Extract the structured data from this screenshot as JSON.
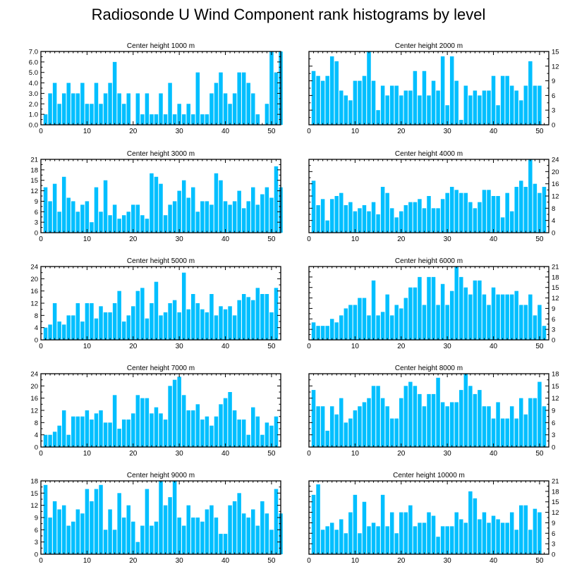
{
  "title": "Radiosonde U Wind Component rank histograms by level",
  "colors": {
    "bar": "#00bfff",
    "axis": "#000000",
    "background": "#ffffff"
  },
  "chart_data": [
    {
      "type": "bar",
      "title": "Center height 1000 m",
      "xlim": [
        0,
        52
      ],
      "ylim": [
        0,
        7
      ],
      "xticks": [
        0,
        10,
        20,
        30,
        40,
        50
      ],
      "yticks": [
        "0.0",
        "1.0",
        "2.0",
        "3.0",
        "4.0",
        "5.0",
        "6.0",
        "7.0"
      ],
      "ystep": 1,
      "ytick_side": "left",
      "values": [
        1,
        3,
        4,
        2,
        3,
        4,
        3,
        3,
        4,
        2,
        2,
        4,
        2,
        3,
        4,
        6,
        3,
        2,
        3,
        0,
        3,
        1,
        3,
        1,
        1,
        3,
        1,
        4,
        1,
        2,
        1,
        2,
        1,
        5,
        1,
        1,
        3,
        4,
        5,
        3,
        2,
        3,
        5,
        5,
        4,
        3,
        1,
        0,
        2,
        7,
        5,
        7
      ]
    },
    {
      "type": "bar",
      "title": "Center height 2000 m",
      "xlim": [
        0,
        52
      ],
      "ylim": [
        0,
        15
      ],
      "xticks": [
        0,
        10,
        20,
        30,
        40,
        50
      ],
      "yticks": [
        "0",
        "3",
        "6",
        "9",
        "12",
        "15"
      ],
      "ystep": 3,
      "ytick_side": "right",
      "values": [
        11,
        10,
        9,
        10,
        14,
        13,
        7,
        6,
        5,
        9,
        9,
        10,
        15,
        9,
        3,
        8,
        6,
        8,
        8,
        6,
        7,
        7,
        11,
        6,
        11,
        6,
        9,
        7,
        14,
        4,
        14,
        9,
        1,
        8,
        6,
        7,
        6,
        7,
        7,
        10,
        4,
        10,
        10,
        8,
        7,
        5,
        8,
        13,
        8,
        8
      ]
    },
    {
      "type": "bar",
      "title": "Center height 3000 m",
      "xlim": [
        0,
        52
      ],
      "ylim": [
        0,
        21
      ],
      "xticks": [
        0,
        10,
        20,
        30,
        40,
        50
      ],
      "yticks": [
        "0",
        "3",
        "6",
        "9",
        "12",
        "15",
        "18",
        "21"
      ],
      "ystep": 3,
      "ytick_side": "left",
      "values": [
        13,
        9,
        14,
        6,
        16,
        10,
        9,
        6,
        8,
        9,
        3,
        13,
        6,
        15,
        5,
        8,
        4,
        5,
        6,
        8,
        8,
        5,
        4,
        17,
        16,
        14,
        5,
        8,
        9,
        12,
        15,
        10,
        13,
        6,
        9,
        9,
        8,
        17,
        15,
        9,
        8,
        9,
        12,
        7,
        9,
        13,
        8,
        11,
        13,
        10,
        19,
        13
      ]
    },
    {
      "type": "bar",
      "title": "Center height 4000 m",
      "xlim": [
        0,
        52
      ],
      "ylim": [
        0,
        24
      ],
      "xticks": [
        0,
        10,
        20,
        30,
        40,
        50
      ],
      "yticks": [
        "0",
        "4",
        "8",
        "12",
        "16",
        "20",
        "24"
      ],
      "ystep": 4,
      "ytick_side": "right",
      "values": [
        17,
        9,
        11,
        4,
        11,
        12,
        13,
        9,
        10,
        7,
        8,
        9,
        7,
        10,
        6,
        15,
        13,
        8,
        5,
        7,
        9,
        10,
        10,
        11,
        8,
        12,
        8,
        8,
        11,
        13,
        15,
        14,
        13,
        13,
        10,
        8,
        10,
        14,
        14,
        12,
        12,
        5,
        13,
        7,
        15,
        17,
        15,
        24,
        16,
        13,
        15
      ]
    },
    {
      "type": "bar",
      "title": "Center height 5000 m",
      "xlim": [
        0,
        52
      ],
      "ylim": [
        0,
        24
      ],
      "xticks": [
        0,
        10,
        20,
        30,
        40,
        50
      ],
      "yticks": [
        "0",
        "4",
        "8",
        "12",
        "16",
        "20",
        "24"
      ],
      "ystep": 4,
      "ytick_side": "left",
      "values": [
        4,
        5,
        12,
        6,
        5,
        8,
        8,
        12,
        6,
        12,
        12,
        7,
        11,
        9,
        9,
        12,
        16,
        6,
        8,
        11,
        16,
        17,
        7,
        12,
        19,
        8,
        9,
        12,
        13,
        9,
        22,
        10,
        15,
        12,
        10,
        9,
        15,
        8,
        11,
        10,
        11,
        8,
        13,
        15,
        14,
        13,
        17,
        15,
        15,
        9,
        17
      ]
    },
    {
      "type": "bar",
      "title": "Center height 6000 m",
      "xlim": [
        0,
        52
      ],
      "ylim": [
        0,
        21
      ],
      "xticks": [
        0,
        10,
        20,
        30,
        40,
        50
      ],
      "yticks": [
        "0",
        "3",
        "6",
        "9",
        "12",
        "15",
        "18",
        "21"
      ],
      "ystep": 3,
      "ytick_side": "right",
      "values": [
        5,
        4,
        4,
        4,
        6,
        5,
        7,
        9,
        10,
        10,
        12,
        12,
        7,
        17,
        7,
        8,
        13,
        7,
        10,
        9,
        12,
        15,
        15,
        18,
        10,
        18,
        18,
        10,
        16,
        10,
        14,
        21,
        18,
        15,
        13,
        17,
        17,
        13,
        10,
        15,
        13,
        13,
        13,
        13,
        14,
        10,
        10,
        13,
        7,
        10,
        4
      ]
    },
    {
      "type": "bar",
      "title": "Center height 7000 m",
      "xlim": [
        0,
        52
      ],
      "ylim": [
        0,
        24
      ],
      "xticks": [
        0,
        10,
        20,
        30,
        40,
        50
      ],
      "yticks": [
        "0",
        "4",
        "8",
        "12",
        "16",
        "20",
        "24"
      ],
      "ystep": 4,
      "ytick_side": "left",
      "values": [
        4,
        4,
        5,
        7,
        12,
        4,
        10,
        10,
        10,
        12,
        9,
        11,
        12,
        8,
        8,
        17,
        6,
        9,
        9,
        11,
        17,
        16,
        16,
        11,
        13,
        11,
        9,
        20,
        22,
        23,
        17,
        12,
        12,
        14,
        9,
        10,
        7,
        10,
        14,
        16,
        18,
        12,
        9,
        9,
        4,
        13,
        10,
        4,
        8,
        7,
        10
      ]
    },
    {
      "type": "bar",
      "title": "Center height 8000 m",
      "xlim": [
        0,
        52
      ],
      "ylim": [
        0,
        18
      ],
      "xticks": [
        0,
        10,
        20,
        30,
        40,
        50
      ],
      "yticks": [
        "0",
        "3",
        "6",
        "9",
        "12",
        "15",
        "18"
      ],
      "ystep": 3,
      "ytick_side": "right",
      "values": [
        14,
        10,
        10,
        4,
        10,
        8,
        12,
        6,
        7,
        9,
        10,
        11,
        12,
        15,
        15,
        12,
        10,
        7,
        7,
        12,
        15,
        16,
        15,
        13,
        10,
        13,
        13,
        17,
        11,
        10,
        11,
        11,
        14,
        18,
        15,
        13,
        14,
        10,
        10,
        7,
        11,
        7,
        7,
        10,
        7,
        12,
        8,
        12,
        12,
        16,
        10
      ]
    },
    {
      "type": "bar",
      "title": "Center height 9000 m",
      "xlim": [
        0,
        52
      ],
      "ylim": [
        0,
        18
      ],
      "xticks": [
        0,
        10,
        20,
        30,
        40,
        50
      ],
      "yticks": [
        "0",
        "3",
        "6",
        "9",
        "12",
        "15",
        "18"
      ],
      "ystep": 3,
      "ytick_side": "left",
      "values": [
        17,
        9,
        13,
        11,
        12,
        7,
        8,
        11,
        10,
        16,
        13,
        16,
        17,
        6,
        11,
        6,
        15,
        9,
        12,
        8,
        3,
        7,
        16,
        7,
        8,
        18,
        12,
        14,
        18,
        9,
        7,
        12,
        9,
        9,
        8,
        11,
        12,
        9,
        5,
        5,
        12,
        13,
        15,
        10,
        9,
        11,
        7,
        13,
        10,
        6,
        16,
        10
      ]
    },
    {
      "type": "bar",
      "title": "Center height 10000 m",
      "xlim": [
        0,
        52
      ],
      "ylim": [
        0,
        21
      ],
      "xticks": [
        0,
        10,
        20,
        30,
        40,
        50
      ],
      "yticks": [
        "0",
        "3",
        "6",
        "9",
        "12",
        "15",
        "18",
        "21"
      ],
      "ystep": 3,
      "ytick_side": "right",
      "values": [
        17,
        20,
        7,
        8,
        9,
        7,
        10,
        6,
        12,
        17,
        6,
        15,
        8,
        9,
        8,
        17,
        8,
        12,
        6,
        12,
        12,
        14,
        8,
        9,
        9,
        12,
        11,
        5,
        8,
        8,
        8,
        12,
        10,
        9,
        18,
        16,
        10,
        12,
        9,
        11,
        10,
        9,
        9,
        12,
        7,
        14,
        14,
        7,
        13,
        12
      ]
    }
  ]
}
